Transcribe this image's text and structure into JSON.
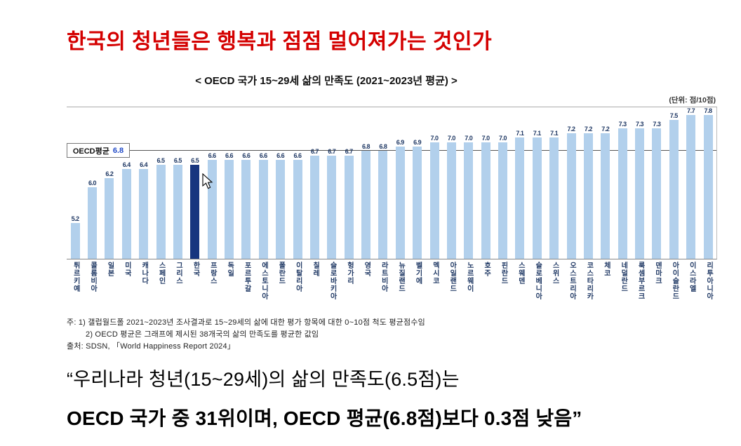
{
  "page_title": "한국의 청년들은 행복과 점점 멀어져가는 것인가",
  "chart": {
    "title": "< OECD 국가 15~29세 삶의 만족도 (2021~2023년 평균) >",
    "unit_label": "(단위: 점/10점)",
    "average_box": {
      "label": "OECD평균",
      "value": "6.8"
    }
  },
  "chart_data": {
    "type": "bar",
    "title": "OECD 국가 15~29세 삶의 만족도 (2021~2023년 평균)",
    "unit": "점/10점",
    "categories": [
      "튀르키예",
      "콜롬비아",
      "일본",
      "미국",
      "캐나다",
      "스페인",
      "그리스",
      "한국",
      "프랑스",
      "독일",
      "포르투갈",
      "에스토니아",
      "폴란드",
      "이탈리아",
      "칠레",
      "슬로바키아",
      "헝가리",
      "영국",
      "라트비아",
      "뉴질랜드",
      "벨기에",
      "멕시코",
      "아일랜드",
      "노르웨이",
      "호주",
      "핀란드",
      "스웨덴",
      "슬로베니아",
      "스위스",
      "오스트리아",
      "코스타리카",
      "체코",
      "네덜란드",
      "룩셈부르크",
      "덴마크",
      "아이슬란드",
      "이스라엘",
      "리투아니아"
    ],
    "values": [
      5.2,
      6.0,
      6.2,
      6.4,
      6.4,
      6.5,
      6.5,
      6.5,
      6.6,
      6.6,
      6.6,
      6.6,
      6.6,
      6.6,
      6.7,
      6.7,
      6.7,
      6.8,
      6.8,
      6.9,
      6.9,
      7.0,
      7.0,
      7.0,
      7.0,
      7.0,
      7.1,
      7.1,
      7.1,
      7.2,
      7.2,
      7.2,
      7.3,
      7.3,
      7.3,
      7.5,
      7.7,
      7.8
    ],
    "highlight_index": 7,
    "highlight_country": "한국",
    "average": 6.8,
    "ylim": [
      4.4,
      8.0
    ],
    "legend": "none",
    "grid": "off"
  },
  "notes": {
    "line1": "주: 1) 갤럽월드폴 2021~2023년 조사결과로 15~29세의 삶에 대한 평가 항목에 대한 0~10점 척도 평균점수임",
    "line2": "2) OECD 평균은 그래프에 제시된 38개국의 삶의 만족도를 평균한 값임",
    "source": "출처: SDSN, 「World Happiness Report 2024」"
  },
  "summary": {
    "line1": "“우리나라 청년(15~29세)의 삶의 만족도(6.5점)는",
    "line2": "OECD 국가 중 31위이며, OECD 평균(6.8점)보다 0.3점 낮음”"
  },
  "colors": {
    "title_red": "#d40000",
    "bar_light": "#b2d0ec",
    "bar_highlight": "#17357f",
    "value_text": "#1f3864",
    "label_text": "#1f3864",
    "average_value_blue": "#1f49c7"
  }
}
